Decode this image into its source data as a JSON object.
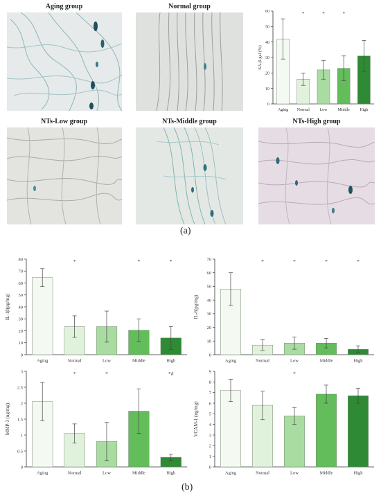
{
  "micrographs": [
    {
      "title": "Aging group"
    },
    {
      "title": "Normal group"
    },
    {
      "title": "NTs-Low group"
    },
    {
      "title": "NTs-Middle group"
    },
    {
      "title": "NTs-High group"
    }
  ],
  "captions": {
    "a": "(a)",
    "b": "(b)"
  },
  "colors": {
    "aging": "#f4faf2",
    "normal": "#e1f2dc",
    "low": "#a8dca0",
    "middle": "#62bd5a",
    "high": "#2e8a34"
  },
  "chart_data": [
    {
      "type": "bar",
      "title": "",
      "xlabel": "",
      "ylabel": "SA-β-gal (%)",
      "ylim": [
        0,
        60
      ],
      "yticks": [
        0,
        10,
        20,
        30,
        40,
        50,
        60
      ],
      "categories": [
        "Aging",
        "Normal",
        "Low",
        "Middle",
        "High"
      ],
      "values": [
        42,
        16,
        22,
        23,
        31
      ],
      "errors": [
        13,
        4,
        6,
        8,
        10
      ],
      "annotations": [
        "",
        "*",
        "*",
        "*",
        ""
      ]
    },
    {
      "type": "bar",
      "title": "",
      "xlabel": "",
      "ylabel": "IL-1β(pg/mg)",
      "ylim": [
        0,
        80
      ],
      "yticks": [
        0,
        10,
        20,
        30,
        40,
        50,
        60,
        70,
        80
      ],
      "categories": [
        "Aging",
        "Normal",
        "Low",
        "Middle",
        "High"
      ],
      "values": [
        64.5,
        23.5,
        23.5,
        20.5,
        14
      ],
      "errors": [
        7.5,
        9,
        13,
        9.5,
        9.5
      ],
      "annotations": [
        "",
        "*",
        "",
        "*",
        "*"
      ]
    },
    {
      "type": "bar",
      "title": "",
      "xlabel": "",
      "ylabel": "IL-6(pg/mg)",
      "ylim": [
        0,
        70
      ],
      "yticks": [
        0,
        10,
        20,
        30,
        40,
        50,
        60,
        70
      ],
      "categories": [
        "Aging",
        "Normal",
        "Low",
        "Middle",
        "High"
      ],
      "values": [
        48,
        7,
        8.5,
        8.5,
        4
      ],
      "errors": [
        12,
        4,
        4.5,
        3.5,
        2.5
      ],
      "annotations": [
        "",
        "*",
        "*",
        "*",
        "*"
      ]
    },
    {
      "type": "bar",
      "title": "",
      "xlabel": "",
      "ylabel": "MMP-3 (ng/mg)",
      "ylim": [
        0,
        3
      ],
      "yticks": [
        0,
        0.5,
        1,
        1.5,
        2,
        2.5,
        3
      ],
      "categories": [
        "Aging",
        "Normal",
        "Low",
        "Middle",
        "High"
      ],
      "values": [
        2.05,
        1.05,
        0.8,
        1.75,
        0.3
      ],
      "errors": [
        0.6,
        0.3,
        0.6,
        0.7,
        0.1
      ],
      "annotations": [
        "",
        "*",
        "*",
        "",
        "*#"
      ]
    },
    {
      "type": "bar",
      "title": "",
      "xlabel": "",
      "ylabel": "VCAM-1 (ng/mg)",
      "ylim": [
        0,
        9
      ],
      "yticks": [
        0,
        1,
        2,
        3,
        4,
        5,
        6,
        7,
        8,
        9
      ],
      "categories": [
        "Aging",
        "Normal",
        "Low",
        "Middle",
        "High"
      ],
      "values": [
        7.2,
        5.8,
        4.8,
        6.85,
        6.7
      ],
      "errors": [
        1.05,
        1.35,
        0.8,
        0.85,
        0.7
      ],
      "annotations": [
        "",
        "",
        "*",
        "",
        ""
      ]
    }
  ]
}
